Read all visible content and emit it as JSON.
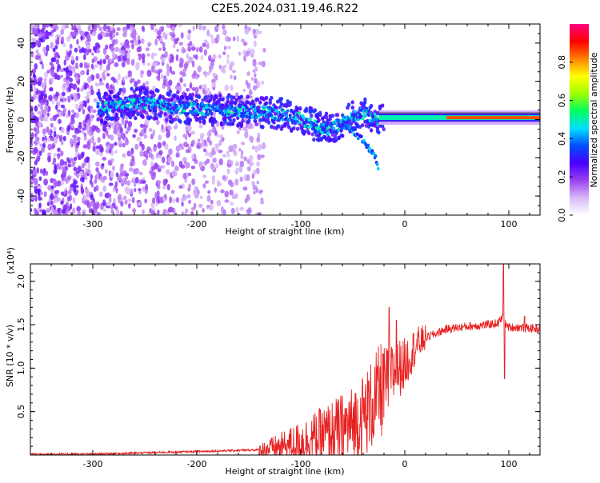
{
  "title": "C2E5.2024.031.19.46.R22",
  "chart_data": [
    {
      "type": "heatmap",
      "name": "spectrogram",
      "xlabel": "Height of straight line (km)",
      "ylabel": "Frequency (Hz)",
      "xlim": [
        -360,
        130
      ],
      "ylim": [
        -50,
        50
      ],
      "xticks": [
        -300,
        -200,
        -100,
        0,
        100
      ],
      "yticks": [
        -40,
        -20,
        0,
        20,
        40
      ],
      "xtick_labels": [
        "-300",
        "-200",
        "-100",
        "0",
        "100"
      ],
      "ytick_labels": [
        "-40",
        "-20",
        "0",
        "20",
        "40"
      ],
      "colorbar": {
        "label": "Normalized spectral amplitude",
        "range": [
          0,
          1
        ],
        "ticks": [
          0.0,
          0.2,
          0.4,
          0.6,
          0.8
        ],
        "tick_labels": [
          "0.0",
          "0.2",
          "0.4",
          "0.6",
          "0.8"
        ],
        "colormap": [
          "#ffffff",
          "#d8b8f8",
          "#9a40f0",
          "#4800ff",
          "#0050ff",
          "#00e0ff",
          "#00ff60",
          "#a0ff00",
          "#ffff00",
          "#ff8000",
          "#ff0000",
          "#ff0080"
        ]
      },
      "ridge": {
        "x": [
          -290,
          -270,
          -250,
          -230,
          -210,
          -190,
          -170,
          -150,
          -130,
          -110,
          -90,
          -75,
          -60,
          -45,
          -35,
          -30,
          -25,
          -20,
          0,
          30,
          60,
          90,
          130
        ],
        "frequency": [
          6,
          8,
          9,
          7,
          6,
          5,
          5,
          4,
          4,
          2,
          -2,
          -5,
          -2,
          3,
          3,
          0,
          0,
          1,
          1,
          1,
          1,
          1,
          1
        ]
      },
      "falling_branch": {
        "x": [
          -60,
          -50,
          -42,
          -36,
          -32,
          -28,
          -25
        ],
        "frequency": [
          -2,
          -6,
          -10,
          -14,
          -17,
          -20,
          -27
        ]
      },
      "noise_region": {
        "x_range": [
          -360,
          -135
        ],
        "peak_amplitude": 0.2
      },
      "line": {
        "x_start": -25,
        "x_end": 130,
        "frequency": 1,
        "amplitude": 0.85
      }
    },
    {
      "type": "line",
      "name": "snr",
      "xlabel": "Height of straight line (km)",
      "ylabel": "SNR (10 * v/v)",
      "scale_label": "(x10⁴)",
      "xlim": [
        -360,
        130
      ],
      "ylim": [
        0,
        2.2
      ],
      "xticks": [
        -300,
        -200,
        -100,
        0,
        100
      ],
      "yticks": [
        0.5,
        1.0,
        1.5,
        2.0
      ],
      "xtick_labels": [
        "-300",
        "-200",
        "-100",
        "0",
        "100"
      ],
      "ytick_labels": [
        "0.5",
        "1.0",
        "1.5",
        "2.0"
      ],
      "color": "#e82020",
      "envelope": {
        "x": [
          -360,
          -300,
          -200,
          -140,
          -120,
          -100,
          -80,
          -60,
          -50,
          -40,
          -30,
          -20,
          -10,
          0,
          10,
          20,
          40,
          60,
          80,
          90,
          95,
          97,
          100,
          110,
          130
        ],
        "y": [
          0.01,
          0.01,
          0.04,
          0.06,
          0.09,
          0.15,
          0.22,
          0.3,
          0.35,
          0.45,
          0.6,
          0.8,
          0.95,
          1.05,
          1.25,
          1.35,
          1.45,
          1.48,
          1.5,
          1.52,
          1.6,
          1.5,
          1.47,
          1.47,
          1.45
        ]
      },
      "spikes": [
        {
          "x": -15,
          "y": 1.7
        },
        {
          "x": -8,
          "y": 1.55
        },
        {
          "x": 95,
          "y": 2.2
        },
        {
          "x": 96,
          "y": 0.88
        },
        {
          "x": 115,
          "y": 1.6
        }
      ]
    }
  ]
}
